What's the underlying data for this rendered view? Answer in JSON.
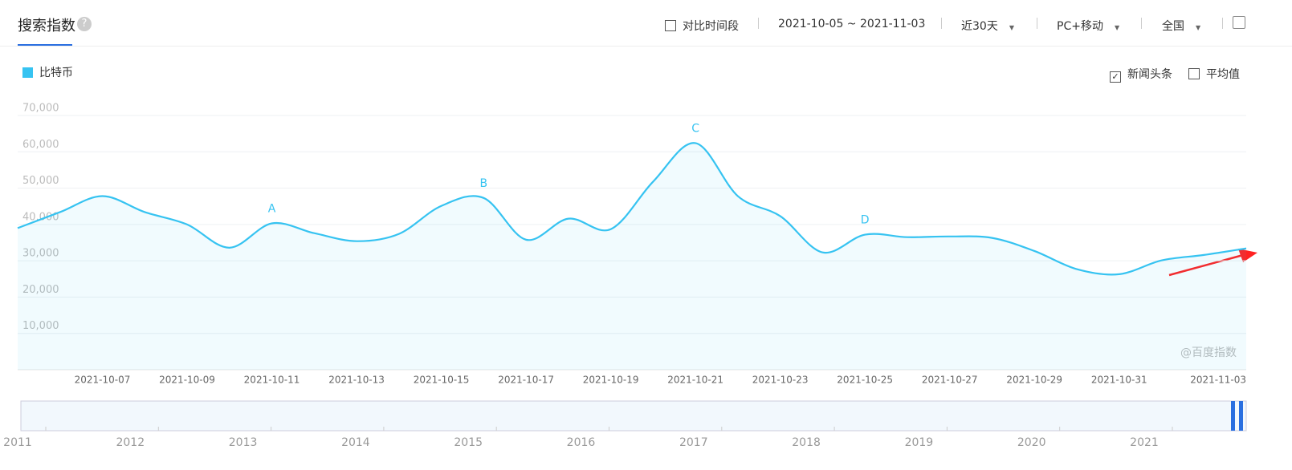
{
  "header": {
    "title": "搜索指数",
    "compare": "对比时间段",
    "range": "2021-10-05 ~ 2021-11-03",
    "period": "近30天",
    "device": "PC+移动",
    "region": "全国"
  },
  "options": [
    "新闻头条",
    "平均值"
  ],
  "watermark": "@百度指数",
  "chart_data": {
    "type": "line",
    "categories": [
      null,
      null,
      "2021-10-07",
      null,
      "2021-10-09",
      null,
      "2021-10-11",
      null,
      "2021-10-13",
      null,
      "2021-10-15",
      null,
      "2021-10-17",
      null,
      "2021-10-19",
      null,
      "2021-10-21",
      null,
      "2021-10-23",
      null,
      "2021-10-25",
      null,
      "2021-10-27",
      null,
      "2021-10-29",
      null,
      "2021-10-31",
      null,
      null,
      "2021-11-03"
    ],
    "series": [
      {
        "name": "比特币",
        "color": "#36c3f1",
        "values": [
          39000,
          43400,
          47800,
          43400,
          40000,
          33600,
          40300,
          37600,
          35400,
          37400,
          45100,
          47300,
          35800,
          41600,
          38700,
          51800,
          62400,
          47800,
          42300,
          32300,
          37200,
          36500,
          36700,
          36300,
          32700,
          27700,
          26300,
          30100,
          31600,
          33400
        ]
      }
    ],
    "annotations": [
      {
        "label": "A",
        "x": "2021-10-11"
      },
      {
        "label": "B",
        "x": "2021-10-16"
      },
      {
        "label": "C",
        "x": "2021-10-21"
      },
      {
        "label": "D",
        "x": "2021-10-25"
      }
    ],
    "ylim": [
      0,
      70000
    ],
    "yticks": [
      {
        "value": 10000,
        "label": "10,000"
      },
      {
        "value": 20000,
        "label": "20,000"
      },
      {
        "value": 30000,
        "label": "30,000"
      },
      {
        "value": 40000,
        "label": "40,000"
      },
      {
        "value": 50000,
        "label": "50,000"
      },
      {
        "value": 60000,
        "label": "60,000"
      },
      {
        "value": 70000,
        "label": "70,000"
      }
    ],
    "grid": true
  },
  "navigator": {
    "years": [
      "2011",
      "2012",
      "2013",
      "2014",
      "2015",
      "2016",
      "2017",
      "2018",
      "2019",
      "2020",
      "2021"
    ]
  }
}
